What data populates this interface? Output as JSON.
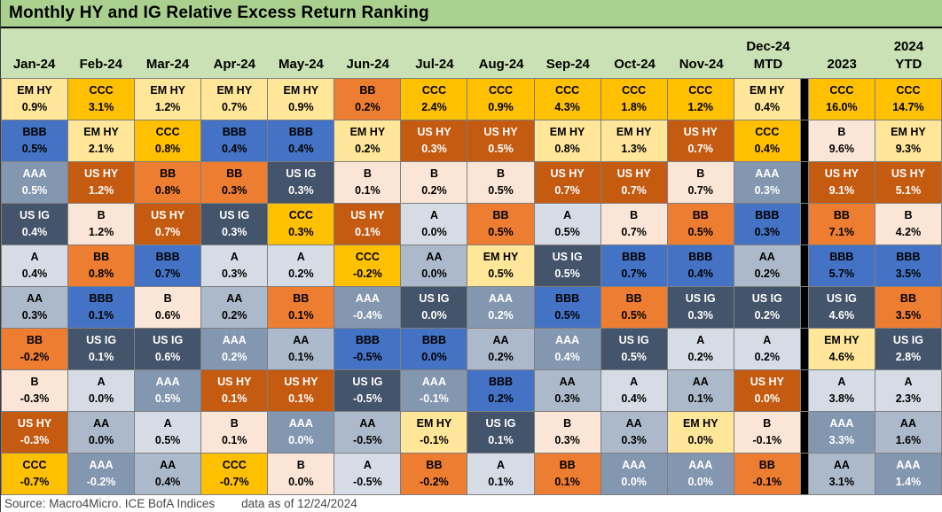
{
  "title": "Monthly HY and IG Relative Excess Return Ranking",
  "footer": {
    "source": "Source: Macro4Micro. ICE BofA Indices",
    "asof": "data as of 12/24/2024"
  },
  "colors": {
    "title_bg": "#A9D08E",
    "header_bg": "#C9E1B4",
    "grid_line": "#7F7F7F",
    "separator": "#000000",
    "footer_fg": "#474747"
  },
  "palette": {
    "EM HY": {
      "bg": "#FFE699",
      "fg": "#000000"
    },
    "CCC": {
      "bg": "#FFC000",
      "fg": "#000000"
    },
    "BBB": {
      "bg": "#4472C4",
      "fg": "#000000"
    },
    "AAA": {
      "bg": "#8497B0",
      "fg": "#FFFFFF"
    },
    "US IG": {
      "bg": "#44546A",
      "fg": "#FFFFFF"
    },
    "A": {
      "bg": "#D6DCE5",
      "fg": "#000000"
    },
    "AA": {
      "bg": "#ACB9CA",
      "fg": "#000000"
    },
    "BB": {
      "bg": "#ED7D31",
      "fg": "#000000"
    },
    "B": {
      "bg": "#FBE5D6",
      "fg": "#000000"
    },
    "US HY": {
      "bg": "#C55A11",
      "fg": "#FFFFFF"
    }
  },
  "chart_data": {
    "type": "table",
    "title": "Monthly HY and IG Relative Excess Return Ranking",
    "row_meaning": "rank 1 (best) at top to rank 10 (worst) at bottom",
    "columns": [
      {
        "label": "Jan-24",
        "cells": [
          {
            "rating": "EM HY",
            "value": "0.9%"
          },
          {
            "rating": "BBB",
            "value": "0.5%"
          },
          {
            "rating": "AAA",
            "value": "0.5%"
          },
          {
            "rating": "US IG",
            "value": "0.4%"
          },
          {
            "rating": "A",
            "value": "0.4%"
          },
          {
            "rating": "AA",
            "value": "0.3%"
          },
          {
            "rating": "BB",
            "value": "-0.2%"
          },
          {
            "rating": "B",
            "value": "-0.3%"
          },
          {
            "rating": "US HY",
            "value": "-0.3%"
          },
          {
            "rating": "CCC",
            "value": "-0.7%"
          }
        ]
      },
      {
        "label": "Feb-24",
        "cells": [
          {
            "rating": "CCC",
            "value": "3.1%"
          },
          {
            "rating": "EM HY",
            "value": "2.1%"
          },
          {
            "rating": "US HY",
            "value": "1.2%"
          },
          {
            "rating": "B",
            "value": "1.2%"
          },
          {
            "rating": "BB",
            "value": "0.8%"
          },
          {
            "rating": "BBB",
            "value": "0.1%"
          },
          {
            "rating": "US IG",
            "value": "0.1%"
          },
          {
            "rating": "A",
            "value": "0.0%"
          },
          {
            "rating": "AA",
            "value": "0.0%"
          },
          {
            "rating": "AAA",
            "value": "-0.2%"
          }
        ]
      },
      {
        "label": "Mar-24",
        "cells": [
          {
            "rating": "EM HY",
            "value": "1.2%"
          },
          {
            "rating": "CCC",
            "value": "0.8%"
          },
          {
            "rating": "BB",
            "value": "0.8%"
          },
          {
            "rating": "US HY",
            "value": "0.7%"
          },
          {
            "rating": "BBB",
            "value": "0.7%"
          },
          {
            "rating": "B",
            "value": "0.6%"
          },
          {
            "rating": "US IG",
            "value": "0.6%"
          },
          {
            "rating": "AAA",
            "value": "0.5%"
          },
          {
            "rating": "A",
            "value": "0.5%"
          },
          {
            "rating": "AA",
            "value": "0.4%"
          }
        ]
      },
      {
        "label": "Apr-24",
        "cells": [
          {
            "rating": "EM HY",
            "value": "0.7%"
          },
          {
            "rating": "BBB",
            "value": "0.4%"
          },
          {
            "rating": "BB",
            "value": "0.3%"
          },
          {
            "rating": "US IG",
            "value": "0.3%"
          },
          {
            "rating": "A",
            "value": "0.3%"
          },
          {
            "rating": "AA",
            "value": "0.2%"
          },
          {
            "rating": "AAA",
            "value": "0.2%"
          },
          {
            "rating": "US HY",
            "value": "0.1%"
          },
          {
            "rating": "B",
            "value": "0.1%"
          },
          {
            "rating": "CCC",
            "value": "-0.7%"
          }
        ]
      },
      {
        "label": "May-24",
        "cells": [
          {
            "rating": "EM HY",
            "value": "0.9%"
          },
          {
            "rating": "BBB",
            "value": "0.4%"
          },
          {
            "rating": "US IG",
            "value": "0.3%"
          },
          {
            "rating": "CCC",
            "value": "0.3%"
          },
          {
            "rating": "A",
            "value": "0.2%"
          },
          {
            "rating": "BB",
            "value": "0.1%"
          },
          {
            "rating": "AA",
            "value": "0.1%"
          },
          {
            "rating": "US HY",
            "value": "0.1%"
          },
          {
            "rating": "AAA",
            "value": "0.0%"
          },
          {
            "rating": "B",
            "value": "0.0%"
          }
        ]
      },
      {
        "label": "Jun-24",
        "cells": [
          {
            "rating": "BB",
            "value": "0.2%"
          },
          {
            "rating": "EM HY",
            "value": "0.2%"
          },
          {
            "rating": "B",
            "value": "0.1%"
          },
          {
            "rating": "US HY",
            "value": "0.1%"
          },
          {
            "rating": "CCC",
            "value": "-0.2%"
          },
          {
            "rating": "AAA",
            "value": "-0.4%"
          },
          {
            "rating": "BBB",
            "value": "-0.5%"
          },
          {
            "rating": "US IG",
            "value": "-0.5%"
          },
          {
            "rating": "AA",
            "value": "-0.5%"
          },
          {
            "rating": "A",
            "value": "-0.5%"
          }
        ]
      },
      {
        "label": "Jul-24",
        "cells": [
          {
            "rating": "CCC",
            "value": "2.4%"
          },
          {
            "rating": "US HY",
            "value": "0.3%"
          },
          {
            "rating": "B",
            "value": "0.2%"
          },
          {
            "rating": "A",
            "value": "0.0%"
          },
          {
            "rating": "AA",
            "value": "0.0%"
          },
          {
            "rating": "US IG",
            "value": "0.0%"
          },
          {
            "rating": "BBB",
            "value": "0.0%"
          },
          {
            "rating": "AAA",
            "value": "-0.1%"
          },
          {
            "rating": "EM HY",
            "value": "-0.1%"
          },
          {
            "rating": "BB",
            "value": "-0.2%"
          }
        ]
      },
      {
        "label": "Aug-24",
        "cells": [
          {
            "rating": "CCC",
            "value": "0.9%"
          },
          {
            "rating": "US HY",
            "value": "0.5%"
          },
          {
            "rating": "B",
            "value": "0.5%"
          },
          {
            "rating": "BB",
            "value": "0.5%"
          },
          {
            "rating": "EM HY",
            "value": "0.5%"
          },
          {
            "rating": "AAA",
            "value": "0.2%"
          },
          {
            "rating": "AA",
            "value": "0.2%"
          },
          {
            "rating": "BBB",
            "value": "0.2%"
          },
          {
            "rating": "US IG",
            "value": "0.1%"
          },
          {
            "rating": "A",
            "value": "0.1%"
          }
        ]
      },
      {
        "label": "Sep-24",
        "cells": [
          {
            "rating": "CCC",
            "value": "4.3%"
          },
          {
            "rating": "EM HY",
            "value": "0.8%"
          },
          {
            "rating": "US HY",
            "value": "0.7%"
          },
          {
            "rating": "A",
            "value": "0.5%"
          },
          {
            "rating": "US IG",
            "value": "0.5%"
          },
          {
            "rating": "BBB",
            "value": "0.5%"
          },
          {
            "rating": "AAA",
            "value": "0.4%"
          },
          {
            "rating": "AA",
            "value": "0.3%"
          },
          {
            "rating": "B",
            "value": "0.3%"
          },
          {
            "rating": "BB",
            "value": "0.1%"
          }
        ]
      },
      {
        "label": "Oct-24",
        "cells": [
          {
            "rating": "CCC",
            "value": "1.8%"
          },
          {
            "rating": "EM HY",
            "value": "1.3%"
          },
          {
            "rating": "US HY",
            "value": "0.7%"
          },
          {
            "rating": "B",
            "value": "0.7%"
          },
          {
            "rating": "BBB",
            "value": "0.7%"
          },
          {
            "rating": "BB",
            "value": "0.5%"
          },
          {
            "rating": "US IG",
            "value": "0.5%"
          },
          {
            "rating": "A",
            "value": "0.4%"
          },
          {
            "rating": "AA",
            "value": "0.3%"
          },
          {
            "rating": "AAA",
            "value": "0.0%"
          }
        ]
      },
      {
        "label": "Nov-24",
        "cells": [
          {
            "rating": "CCC",
            "value": "1.2%"
          },
          {
            "rating": "US HY",
            "value": "0.7%"
          },
          {
            "rating": "B",
            "value": "0.7%"
          },
          {
            "rating": "BB",
            "value": "0.5%"
          },
          {
            "rating": "BBB",
            "value": "0.4%"
          },
          {
            "rating": "US IG",
            "value": "0.3%"
          },
          {
            "rating": "A",
            "value": "0.2%"
          },
          {
            "rating": "AA",
            "value": "0.1%"
          },
          {
            "rating": "EM HY",
            "value": "0.0%"
          },
          {
            "rating": "AAA",
            "value": "0.0%"
          }
        ]
      },
      {
        "label": "MTD",
        "label_top": "Dec-24",
        "cells": [
          {
            "rating": "EM HY",
            "value": "0.4%"
          },
          {
            "rating": "CCC",
            "value": "0.4%"
          },
          {
            "rating": "AAA",
            "value": "0.3%"
          },
          {
            "rating": "BBB",
            "value": "0.3%"
          },
          {
            "rating": "AA",
            "value": "0.2%"
          },
          {
            "rating": "US IG",
            "value": "0.2%"
          },
          {
            "rating": "A",
            "value": "0.2%"
          },
          {
            "rating": "US HY",
            "value": "0.0%"
          },
          {
            "rating": "B",
            "value": "-0.1%"
          },
          {
            "rating": "BB",
            "value": "-0.1%"
          }
        ]
      },
      {
        "label": "2023",
        "cells": [
          {
            "rating": "CCC",
            "value": "16.0%"
          },
          {
            "rating": "B",
            "value": "9.6%"
          },
          {
            "rating": "US HY",
            "value": "9.1%"
          },
          {
            "rating": "BB",
            "value": "7.1%"
          },
          {
            "rating": "BBB",
            "value": "5.7%"
          },
          {
            "rating": "US IG",
            "value": "4.6%"
          },
          {
            "rating": "EM HY",
            "value": "4.6%"
          },
          {
            "rating": "A",
            "value": "3.8%"
          },
          {
            "rating": "AAA",
            "value": "3.3%"
          },
          {
            "rating": "AA",
            "value": "3.1%"
          }
        ]
      },
      {
        "label": "YTD",
        "label_top": "2024",
        "cells": [
          {
            "rating": "CCC",
            "value": "14.7%"
          },
          {
            "rating": "EM HY",
            "value": "9.3%"
          },
          {
            "rating": "US HY",
            "value": "5.1%"
          },
          {
            "rating": "B",
            "value": "4.2%"
          },
          {
            "rating": "BBB",
            "value": "3.5%"
          },
          {
            "rating": "BB",
            "value": "3.5%"
          },
          {
            "rating": "US IG",
            "value": "2.8%"
          },
          {
            "rating": "A",
            "value": "2.3%"
          },
          {
            "rating": "AA",
            "value": "1.6%"
          },
          {
            "rating": "AAA",
            "value": "1.4%"
          }
        ]
      }
    ]
  }
}
